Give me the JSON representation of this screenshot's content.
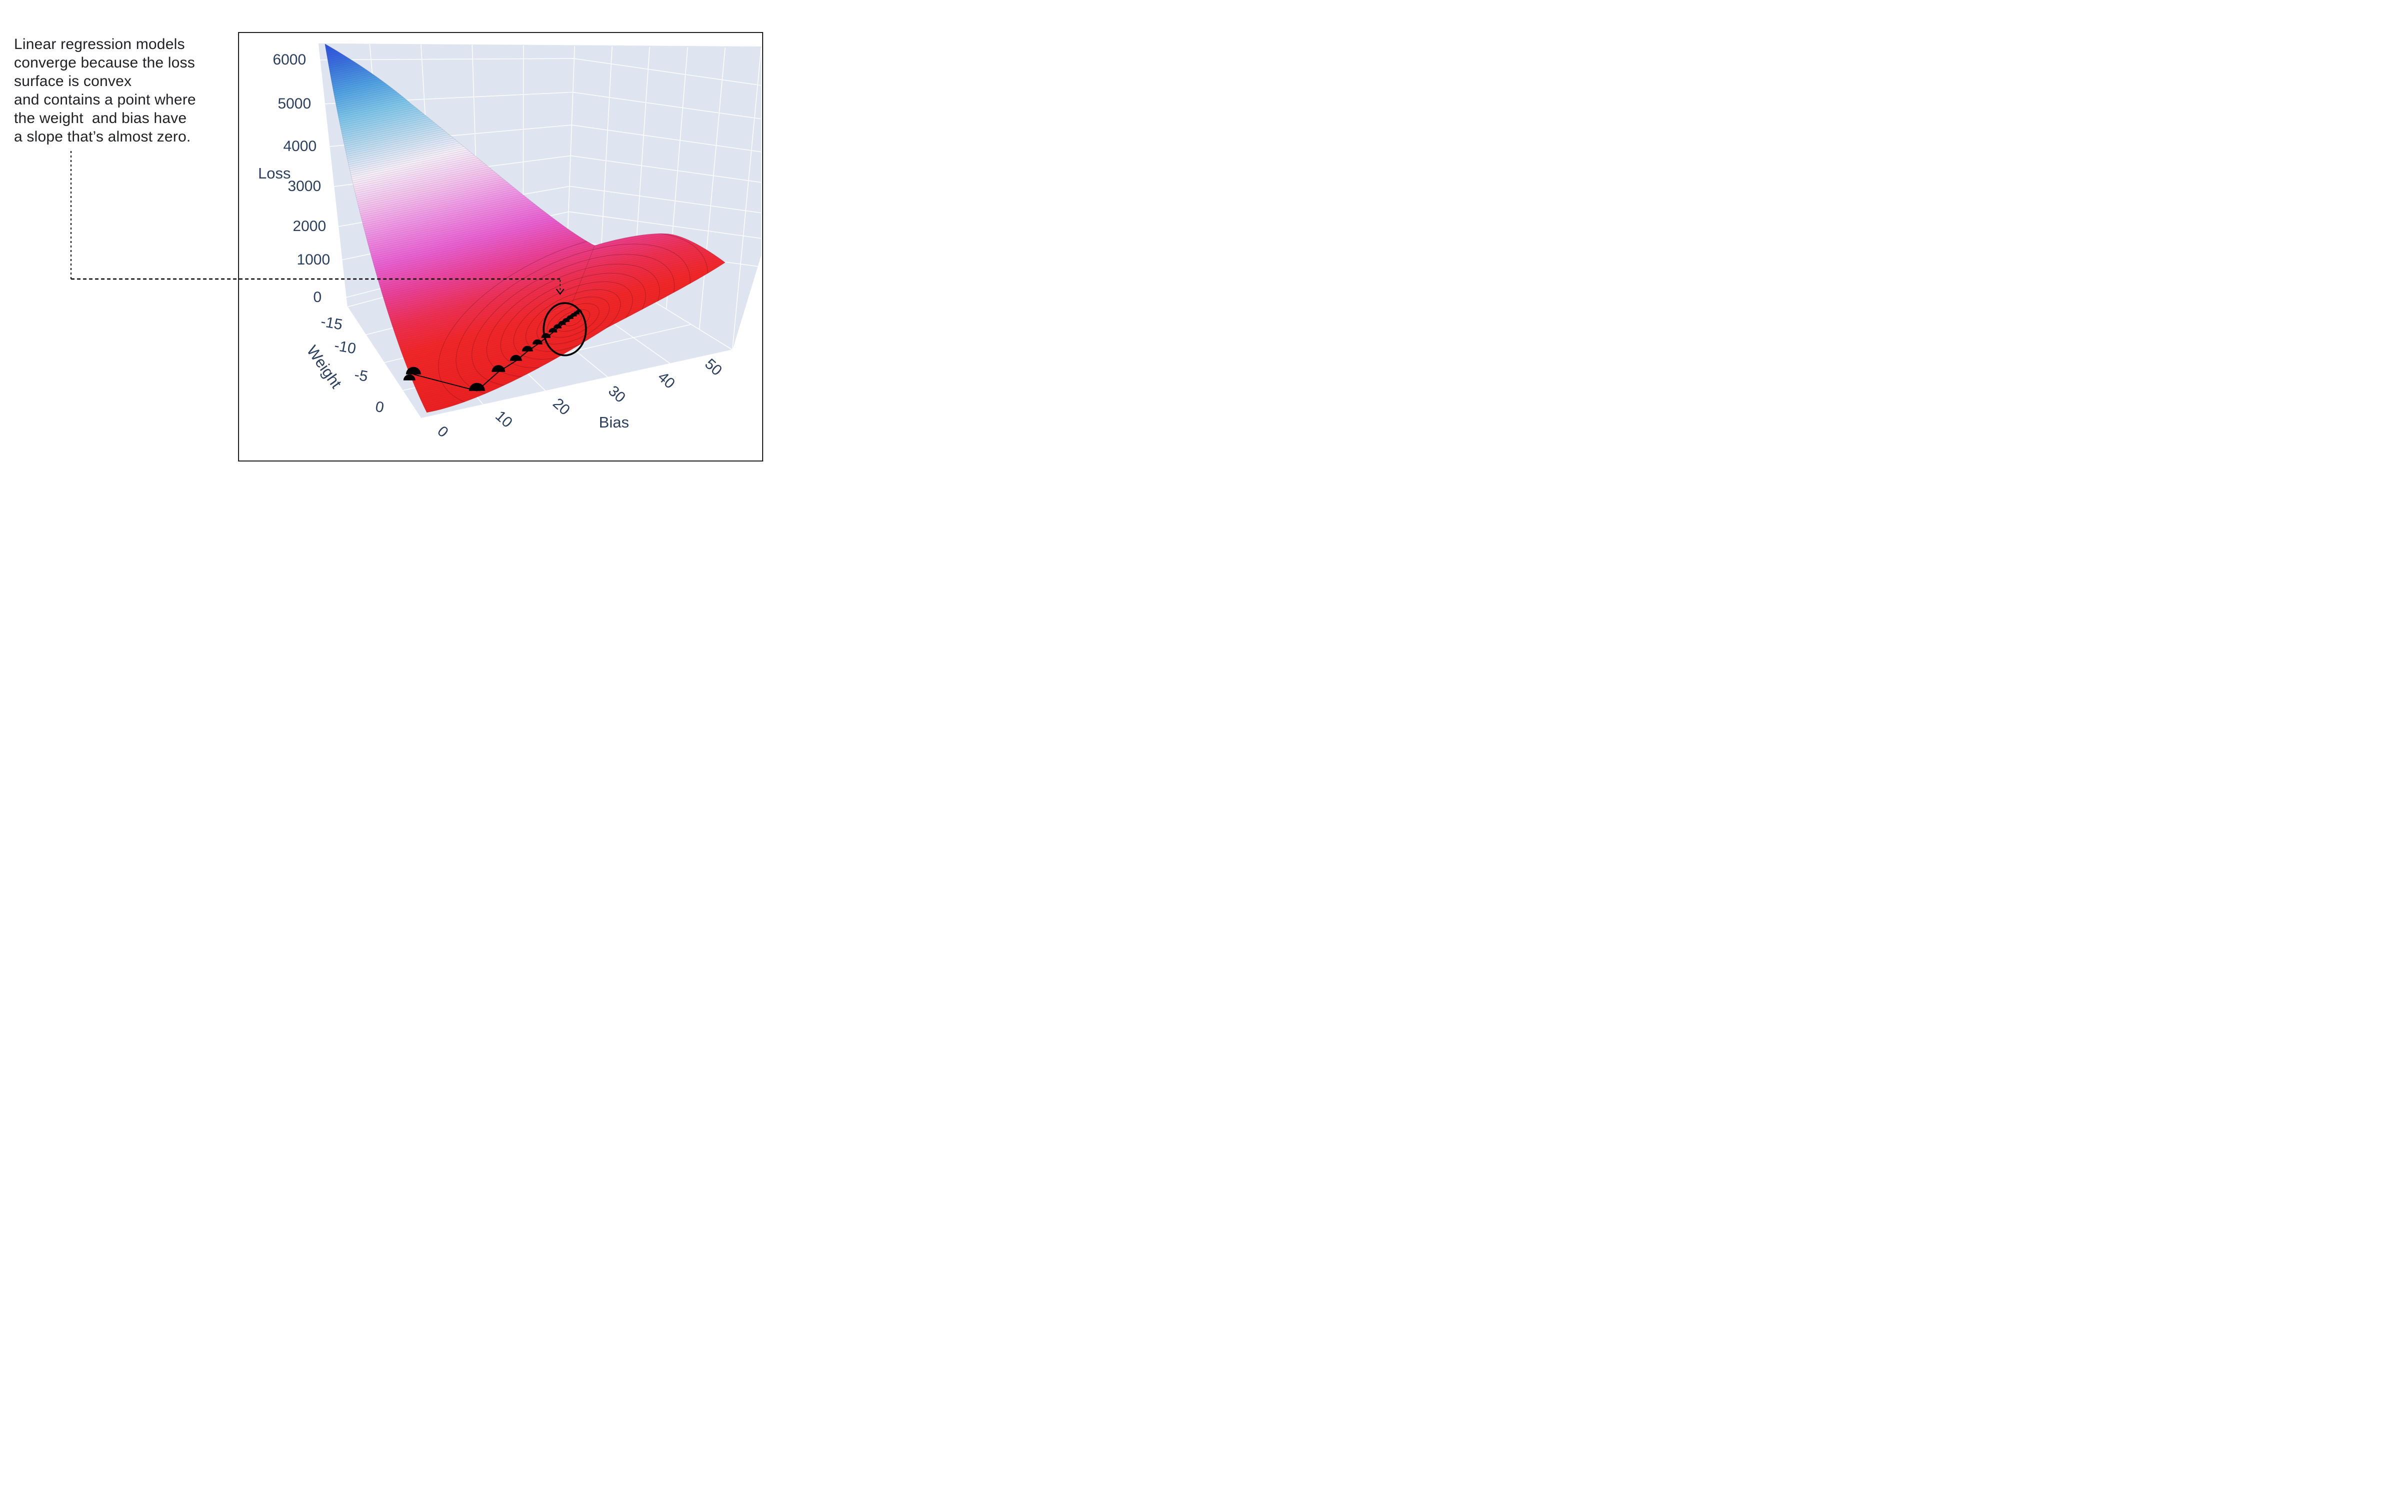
{
  "annotation": {
    "lines": [
      "Linear regression models",
      "converge because the loss",
      "surface is convex",
      "and contains a point where",
      "the weight  and bias have",
      "a slope that’s almost zero."
    ]
  },
  "axes": {
    "loss": {
      "title": "Loss",
      "ticks": [
        "6000",
        "5000",
        "4000",
        "3000",
        "2000",
        "1000",
        "0"
      ]
    },
    "weight": {
      "title": "Weight",
      "ticks": [
        "-15",
        "-10",
        "-5",
        "0"
      ]
    },
    "bias": {
      "title": "Bias",
      "ticks": [
        "0",
        "10",
        "20",
        "30",
        "40",
        "50"
      ]
    }
  },
  "colors": {
    "tick_text": "#2a3f5f",
    "annotation_text": "#202124",
    "wall": "#dfe4f1",
    "grid": "#ffffff",
    "marker": "#000000",
    "surface_top": "#2a50df",
    "surface_mid": "#f6eef8",
    "surface_bottom": "#f42525"
  },
  "chart_data": {
    "type": "surface",
    "title": "",
    "xlabel": "Bias",
    "ylabel": "Weight",
    "zlabel": "Loss",
    "x_range": [
      0,
      50
    ],
    "y_range": [
      -20,
      0
    ],
    "z_range": [
      0,
      6500
    ],
    "x_ticks": [
      0,
      10,
      20,
      30,
      40,
      50
    ],
    "y_ticks": [
      -15,
      -10,
      -5,
      0
    ],
    "z_ticks": [
      6000,
      5000,
      4000,
      3000,
      2000,
      1000,
      0
    ],
    "grid": "on",
    "legend": "none",
    "surface_description": "Convex loss bowl over (bias, weight); blue at high loss (~6500) through white and magenta to red near zero loss; minimum near bias≈18, weight≈-9",
    "colorscale": [
      "#2a50df",
      "#3a70dd",
      "#4f9fe2",
      "#7cc4e8",
      "#b8d9ee",
      "#f6eef8",
      "#f4c0ec",
      "#ef8ce2",
      "#ea5ecf",
      "#ec3f96",
      "#f02e50",
      "#f42525",
      "#ef1f1f"
    ],
    "gradient_descent_path": {
      "points_bias_weight": [
        [
          3,
          -4
        ],
        [
          8,
          -1
        ],
        [
          10,
          -2.5
        ],
        [
          11.5,
          -3.8
        ],
        [
          12.7,
          -4.8
        ],
        [
          13.7,
          -5.6
        ],
        [
          14.6,
          -6.3
        ],
        [
          15.3,
          -6.9
        ],
        [
          16,
          -7.4
        ],
        [
          16.5,
          -7.8
        ],
        [
          17,
          -8.2
        ],
        [
          17.4,
          -8.5
        ],
        [
          17.7,
          -8.8
        ],
        [
          18,
          -9
        ]
      ],
      "note": "black markers shrink as steps get smaller; converges inside circled region where slope ≈ 0"
    },
    "annotations": {
      "circled_minimum_bias_weight": [
        18,
        -9
      ],
      "dashed_connector": "from caption text to circled minimum"
    },
    "layout": {
      "labels": [
        {
          "bind": "axes.loss.ticks.0",
          "x": 100.7,
          "y": 53.7,
          "rot": 0,
          "name": "loss-tick-6000"
        },
        {
          "bind": "axes.loss.ticks.1",
          "x": 110.7,
          "y": 141.7,
          "rot": 0,
          "name": "loss-tick-5000"
        },
        {
          "bind": "axes.loss.ticks.2",
          "x": 121.7,
          "y": 227,
          "rot": 0,
          "name": "loss-tick-4000"
        },
        {
          "bind": "axes.loss.ticks.3",
          "x": 130.7,
          "y": 307,
          "rot": 0,
          "name": "loss-tick-3000"
        },
        {
          "bind": "axes.loss.ticks.4",
          "x": 140.7,
          "y": 387,
          "rot": 0,
          "name": "loss-tick-2000"
        },
        {
          "bind": "axes.loss.ticks.5",
          "x": 148.7,
          "y": 453.7,
          "rot": 0,
          "name": "loss-tick-1000"
        },
        {
          "bind": "axes.loss.ticks.6",
          "x": 156.7,
          "y": 528.7,
          "rot": 0,
          "name": "loss-tick-0"
        },
        {
          "bind": "axes.loss.title",
          "x": 70.7,
          "y": 280.7,
          "rot": 0,
          "name": "loss-axis-title",
          "cls": "axis-title"
        },
        {
          "bind": "axes.weight.ticks.0",
          "x": 184.7,
          "y": 580.7,
          "rot": 10,
          "name": "weight-tick--15"
        },
        {
          "bind": "axes.weight.ticks.1",
          "x": 211.7,
          "y": 628.7,
          "rot": 10,
          "name": "weight-tick--10"
        },
        {
          "bind": "axes.weight.ticks.2",
          "x": 243.7,
          "y": 685.7,
          "rot": 10,
          "name": "weight-tick--5"
        },
        {
          "bind": "axes.weight.ticks.3",
          "x": 280.7,
          "y": 748.7,
          "rot": 10,
          "name": "weight-tick-0"
        },
        {
          "bind": "axes.weight.title",
          "x": 169.7,
          "y": 667.7,
          "rot": 55,
          "name": "weight-axis-title",
          "cls": "axis-title"
        },
        {
          "bind": "axes.bias.ticks.0",
          "x": 406.7,
          "y": 797.7,
          "rot": 42,
          "name": "bias-tick-0"
        },
        {
          "bind": "axes.bias.ticks.1",
          "x": 528.7,
          "y": 772.7,
          "rot": 42,
          "name": "bias-tick-10"
        },
        {
          "bind": "axes.bias.ticks.2",
          "x": 643.7,
          "y": 747.7,
          "rot": 42,
          "name": "bias-tick-20"
        },
        {
          "bind": "axes.bias.ticks.3",
          "x": 754.7,
          "y": 722.7,
          "rot": 42,
          "name": "bias-tick-30"
        },
        {
          "bind": "axes.bias.ticks.4",
          "x": 853.7,
          "y": 694.7,
          "rot": 42,
          "name": "bias-tick-40"
        },
        {
          "bind": "axes.bias.ticks.5",
          "x": 947.7,
          "y": 668.7,
          "rot": 42,
          "name": "bias-tick-50"
        },
        {
          "bind": "axes.bias.title",
          "x": 749.7,
          "y": 778.7,
          "rot": 0,
          "name": "bias-axis-title",
          "cls": "axis-title"
        }
      ],
      "descent_markers": [
        {
          "x": 348.7,
          "y": 682.7,
          "r": 15
        },
        {
          "x": 340.7,
          "y": 694.7,
          "r": 12,
          "noline": true
        },
        {
          "x": 475.7,
          "y": 715.7,
          "r": 16
        },
        {
          "x": 518.7,
          "y": 677.7,
          "r": 13.5
        },
        {
          "x": 553.7,
          "y": 655.7,
          "r": 12
        },
        {
          "x": 576.7,
          "y": 636.7,
          "r": 11
        },
        {
          "x": 596.7,
          "y": 622.7,
          "r": 10
        },
        {
          "x": 613.7,
          "y": 609.7,
          "r": 9.3
        },
        {
          "x": 627.7,
          "y": 598.7,
          "r": 8.7
        },
        {
          "x": 636.7,
          "y": 590.7,
          "r": 8.2
        },
        {
          "x": 645.7,
          "y": 583.7,
          "r": 7.8
        },
        {
          "x": 653.7,
          "y": 577.7,
          "r": 7.4
        },
        {
          "x": 661.7,
          "y": 571.7,
          "r": 7
        },
        {
          "x": 668.7,
          "y": 566.7,
          "r": 6.7
        },
        {
          "x": 674.7,
          "y": 562.7,
          "r": 6.4
        },
        {
          "x": 679.7,
          "y": 558.7,
          "r": 6.2
        }
      ]
    }
  }
}
